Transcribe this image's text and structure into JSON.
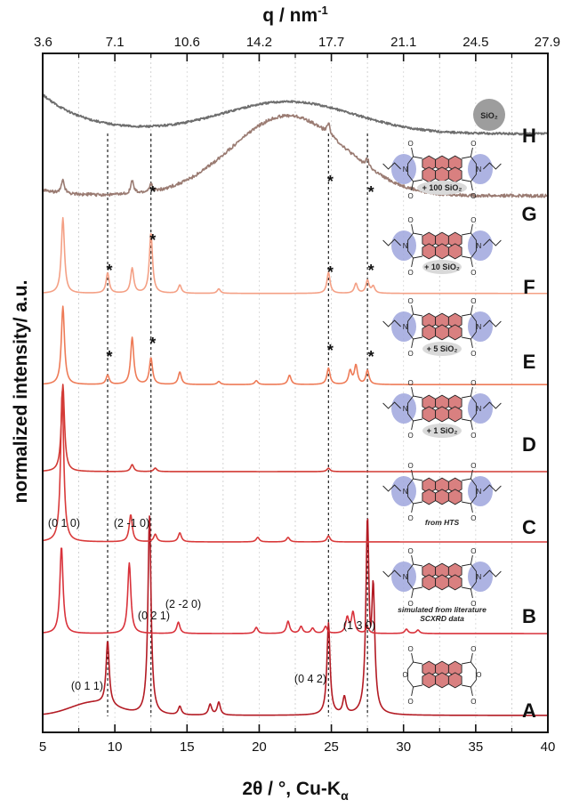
{
  "chart_data": {
    "type": "line",
    "xlabel": "2θ / °, Cu-Kα",
    "xlabel_parts": {
      "main": "2θ / °, Cu-K",
      "sub": "α"
    },
    "ylabel": "normalized intensity/ a.u.",
    "top_xlabel": "q / nm",
    "top_xlabel_sup": "-1",
    "xlim": [
      5,
      40
    ],
    "bottom_ticks": [
      "5",
      "10",
      "15",
      "20",
      "25",
      "30",
      "35",
      "40"
    ],
    "top_ticks": [
      "3.6",
      "7.1",
      "10.6",
      "14.2",
      "17.7",
      "21.1",
      "24.5",
      "27.9"
    ],
    "grid": "vertical dotted at minor 2θ positions",
    "reference_lines_2theta": [
      9.5,
      12.5,
      24.8,
      27.5
    ],
    "colors": {
      "A": "#b31b24",
      "B": "#d9323b",
      "C": "#d93a3a",
      "D": "#d23a34",
      "E": "#ee7b57",
      "F": "#f4a085",
      "G": "#9a7b72",
      "H": "#6e6e6e",
      "perylene_core": "#d98080",
      "imide_circle": "#9fa6dd",
      "silica": "#9d9d9d"
    },
    "series": [
      {
        "name": "A",
        "peaks": [
          [
            9.5,
            0.3
          ],
          [
            12.4,
            0.93
          ],
          [
            24.8,
            0.43
          ],
          [
            27.5,
            0.88
          ],
          [
            27.9,
            0.55
          ],
          [
            25.9,
            0.08
          ],
          [
            16.6,
            0.05
          ],
          [
            17.2,
            0.06
          ],
          [
            14.5,
            0.04
          ]
        ],
        "baseline": 0.05
      },
      {
        "name": "B",
        "peaks": [
          [
            6.3,
            1.0
          ],
          [
            11.0,
            0.81
          ],
          [
            14.4,
            0.13
          ],
          [
            19.8,
            0.07
          ],
          [
            22.0,
            0.14
          ],
          [
            22.9,
            0.08
          ],
          [
            23.7,
            0.06
          ],
          [
            24.6,
            0.08
          ],
          [
            26.1,
            0.18
          ],
          [
            26.5,
            0.24
          ],
          [
            27.5,
            0.07
          ],
          [
            30.2,
            0.05
          ],
          [
            31.0,
            0.04
          ]
        ],
        "baseline": 0.0
      },
      {
        "name": "C",
        "peaks": [
          [
            6.35,
            1.0
          ],
          [
            11.1,
            0.18
          ],
          [
            12.8,
            0.05
          ],
          [
            14.5,
            0.06
          ],
          [
            24.8,
            0.04
          ],
          [
            19.9,
            0.03
          ],
          [
            22.0,
            0.03
          ]
        ],
        "baseline": 0.0
      },
      {
        "name": "D",
        "peaks": [
          [
            6.4,
            1.0
          ],
          [
            11.2,
            0.08
          ],
          [
            12.8,
            0.04
          ],
          [
            24.8,
            0.04
          ]
        ],
        "baseline": 0.0
      },
      {
        "name": "E",
        "peaks": [
          [
            6.4,
            1.0
          ],
          [
            9.5,
            0.12
          ],
          [
            11.2,
            0.6
          ],
          [
            12.5,
            0.34
          ],
          [
            14.5,
            0.16
          ],
          [
            22.1,
            0.12
          ],
          [
            24.8,
            0.21
          ],
          [
            26.3,
            0.17
          ],
          [
            26.7,
            0.24
          ],
          [
            27.5,
            0.18
          ],
          [
            19.8,
            0.05
          ],
          [
            17.2,
            0.04
          ]
        ],
        "baseline": 0.02
      },
      {
        "name": "F",
        "peaks": [
          [
            6.4,
            1.0
          ],
          [
            9.5,
            0.27
          ],
          [
            11.2,
            0.33
          ],
          [
            12.5,
            0.8
          ],
          [
            14.5,
            0.11
          ],
          [
            17.2,
            0.06
          ],
          [
            24.8,
            0.28
          ],
          [
            26.7,
            0.13
          ],
          [
            27.5,
            0.17
          ],
          [
            27.9,
            0.09
          ]
        ],
        "baseline": 0.05
      },
      {
        "name": "G",
        "peaks": [
          [
            6.4,
            0.12
          ],
          [
            11.2,
            0.12
          ],
          [
            12.5,
            0.07
          ],
          [
            24.8,
            0.1
          ],
          [
            27.5,
            0.07
          ]
        ],
        "baseline": 0.05,
        "hump": {
          "center": 22,
          "height": 0.75,
          "width": 5.5
        }
      },
      {
        "name": "H",
        "peaks": [],
        "baseline": 0.12,
        "hump": {
          "center": 22,
          "height": 0.45,
          "width": 6.5
        },
        "initial_decay": true
      }
    ],
    "peak_labels": [
      {
        "text": "(0 1 1)",
        "x": 9.5,
        "trace": "A"
      },
      {
        "text": "(0 2 1)",
        "x": 12.4,
        "trace": "A"
      },
      {
        "text": "(0 4 2)",
        "x": 24.8,
        "trace": "A"
      },
      {
        "text": "(1 3 0)",
        "x": 27.5,
        "trace": "A"
      },
      {
        "text": "(0 1 0)",
        "x": 6.3,
        "trace": "B"
      },
      {
        "text": "(2 -1 0)",
        "x": 11.0,
        "trace": "B"
      },
      {
        "text": "(2 -2 0)",
        "x": 14.4,
        "trace": "B"
      }
    ],
    "stars": [
      {
        "trace": "E",
        "x": 9.5
      },
      {
        "trace": "E",
        "x": 12.5
      },
      {
        "trace": "E",
        "x": 24.8
      },
      {
        "trace": "E",
        "x": 27.5
      },
      {
        "trace": "F",
        "x": 9.5
      },
      {
        "trace": "F",
        "x": 12.5
      },
      {
        "trace": "F",
        "x": 24.8
      },
      {
        "trace": "F",
        "x": 27.5
      },
      {
        "trace": "G",
        "x": 12.5
      },
      {
        "trace": "G",
        "x": 24.8
      },
      {
        "trace": "G",
        "x": 27.5
      }
    ],
    "molecule_captions": {
      "B": [
        "simulated from literature",
        "SCXRD data"
      ],
      "C": "from HTS",
      "D": "+ 1 SiO₂",
      "E": "+ 5 SiO₂",
      "F": "+ 10 SiO₂",
      "G": "+ 100 SiO₂",
      "H": "SiO₂"
    },
    "star_symbol": "*",
    "molecule_atom_label": "O",
    "molecule_nitrogen_label": "N"
  }
}
